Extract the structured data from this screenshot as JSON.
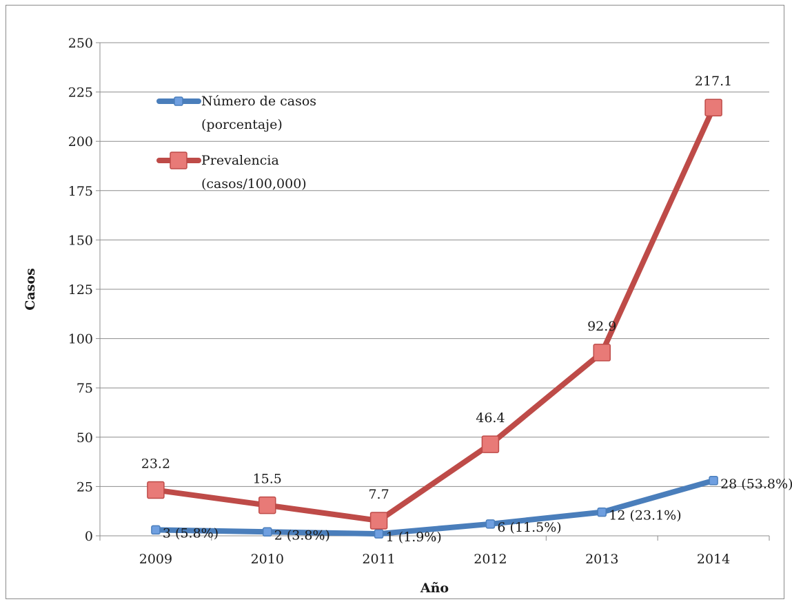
{
  "chart_data": {
    "type": "line",
    "title": "",
    "xlabel": "Año",
    "ylabel": "Casos",
    "ylim": [
      0,
      250
    ],
    "yticks": [
      0,
      25,
      50,
      75,
      100,
      125,
      150,
      175,
      200,
      225,
      250
    ],
    "categories": [
      "2009",
      "2010",
      "2011",
      "2012",
      "2013",
      "2014"
    ],
    "grid": "horizontal",
    "legend_position": "top-left",
    "series": [
      {
        "name_lines": [
          "Número de casos",
          "(porcentaje)"
        ],
        "color": "#4a7ebb",
        "marker_color": "#6f9fe0",
        "values": [
          3,
          2,
          1,
          6,
          12,
          28
        ],
        "labels": [
          "3 (5.8%)",
          "2 (3.8%)",
          "1 (1.9%)",
          "6 (11.5%)",
          "12 (23.1%)",
          "28 (53.8%)"
        ]
      },
      {
        "name_lines": [
          "Prevalencia",
          "(casos/100,000)"
        ],
        "color": "#be4b48",
        "marker_color": "#e87a77",
        "values": [
          23.2,
          15.5,
          7.7,
          46.4,
          92.9,
          217.1
        ],
        "labels": [
          "23.2",
          "15.5",
          "7.7",
          "46.4",
          "92.9",
          "217.1"
        ]
      }
    ]
  }
}
